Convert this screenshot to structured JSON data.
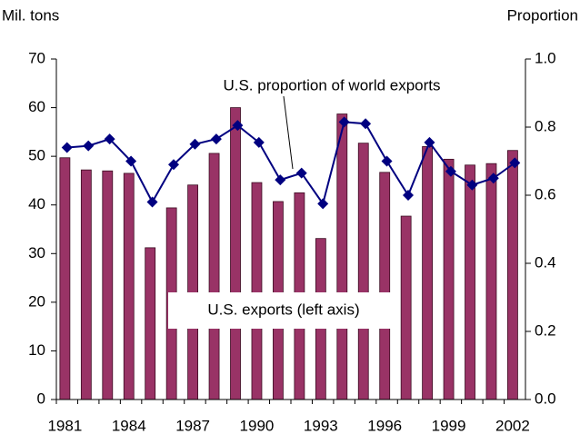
{
  "chart_data": {
    "type": "bar",
    "y_label": "Mil. tons",
    "y2_label": "Proportion",
    "categories": [
      "1981",
      null,
      null,
      "1984",
      null,
      null,
      "1987",
      null,
      null,
      "1990",
      null,
      null,
      "1993",
      null,
      null,
      "1996",
      null,
      null,
      "1999",
      null,
      null,
      "2002"
    ],
    "series": [
      {
        "name": "U.S. exports (left axis)",
        "type": "bar",
        "axis": "y",
        "color": "#993366",
        "values": [
          49.7,
          47.2,
          47.0,
          46.5,
          31.2,
          39.4,
          44.1,
          50.6,
          60.0,
          44.6,
          40.7,
          42.5,
          33.1,
          58.7,
          52.7,
          46.7,
          37.7,
          52.0,
          49.4,
          48.2,
          48.5,
          51.2
        ]
      },
      {
        "name": "U.S. proportion of world exports",
        "type": "line",
        "axis": "y2",
        "color": "#000080",
        "values": [
          0.74,
          0.745,
          0.765,
          0.7,
          0.58,
          0.69,
          0.75,
          0.765,
          0.805,
          0.755,
          0.645,
          0.665,
          0.575,
          0.815,
          0.81,
          0.7,
          0.6,
          0.755,
          0.67,
          0.63,
          0.65,
          0.695
        ]
      }
    ],
    "ylim": [
      0,
      70
    ],
    "yticks": [
      0,
      10,
      20,
      30,
      40,
      50,
      60,
      70
    ],
    "y2lim": [
      0,
      1.0
    ],
    "y2ticks": [
      {
        "value": 0,
        "label": "0.0"
      },
      0.2,
      0.4,
      0.6,
      0.8,
      {
        "value": 1.0,
        "label": "1.0"
      }
    ]
  }
}
